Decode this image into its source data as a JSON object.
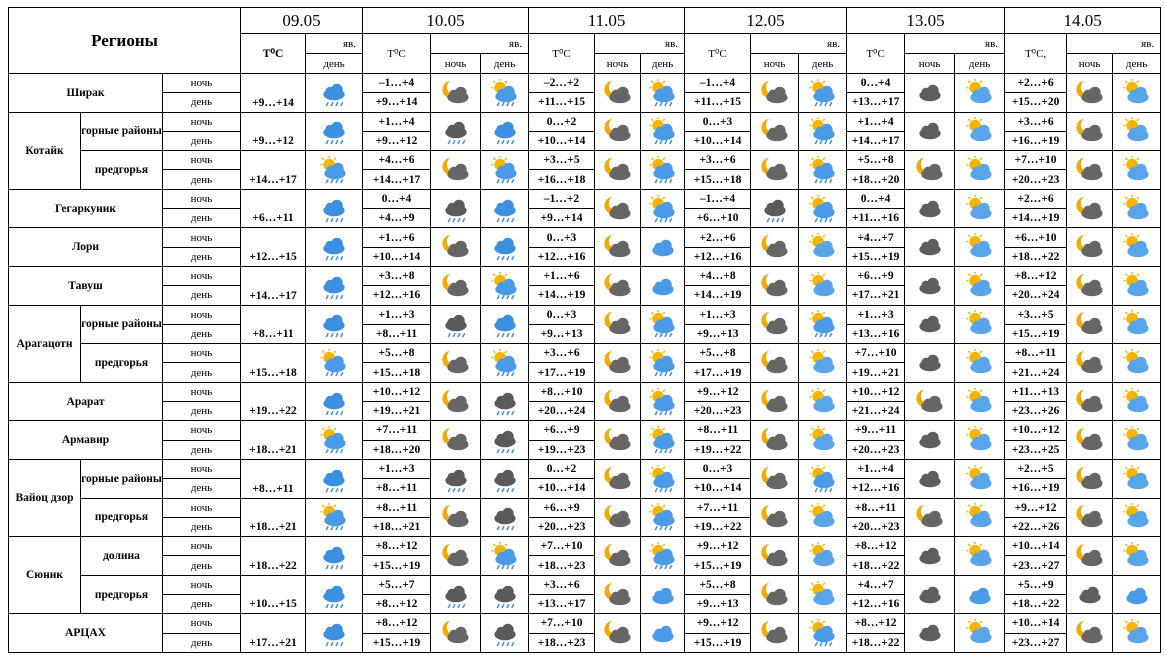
{
  "header": {
    "region": "Регионы",
    "dates": [
      "09.05",
      "10.05",
      "11.05",
      "12.05",
      "13.05",
      "14.05"
    ],
    "temp": "T⁰C",
    "temp_last": "T⁰C,",
    "icon": "яв.",
    "night": "ночь",
    "day": "день"
  },
  "regions": [
    {
      "name": "Ширак",
      "parts": [
        {
          "sub": null,
          "first": "+9…+14",
          "temps": [
            [
              "–1…+4",
              "+9…+14"
            ],
            [
              "–2…+2",
              "+11…+15"
            ],
            [
              "–1…+4",
              "+11…+15"
            ],
            [
              "0…+4",
              "+13…+17"
            ],
            [
              "+2…+6",
              "+15…+20"
            ]
          ]
        }
      ]
    },
    {
      "name": "Котайк",
      "parts": [
        {
          "sub": "горные районы",
          "first": "+9…+12",
          "temps": [
            [
              "+1…+4",
              "+9…+12"
            ],
            [
              "0…+2",
              "+10…+14"
            ],
            [
              "0…+3",
              "+10…+14"
            ],
            [
              "+1…+4",
              "+14…+17"
            ],
            [
              "+3…+6",
              "+16…+19"
            ]
          ]
        },
        {
          "sub": "предгорья",
          "first": "+14…+17",
          "temps": [
            [
              "+4…+6",
              "+14…+17"
            ],
            [
              "+3…+5",
              "+16…+18"
            ],
            [
              "+3…+6",
              "+15…+18"
            ],
            [
              "+5…+8",
              "+18…+20"
            ],
            [
              "+7…+10",
              "+20…+23"
            ]
          ]
        }
      ]
    },
    {
      "name": "Гегаркуник",
      "parts": [
        {
          "sub": null,
          "first": "+6…+11",
          "temps": [
            [
              "0…+4",
              "+4…+9"
            ],
            [
              "–1…+2",
              "+9…+14"
            ],
            [
              "–1…+4",
              "+6…+10"
            ],
            [
              "0…+4",
              "+11…+16"
            ],
            [
              "+2…+6",
              "+14…+19"
            ]
          ]
        }
      ]
    },
    {
      "name": "Лори",
      "parts": [
        {
          "sub": null,
          "first": "+12…+15",
          "temps": [
            [
              "+1…+6",
              "+10…+14"
            ],
            [
              "0…+3",
              "+12…+16"
            ],
            [
              "+2…+6",
              "+12…+16"
            ],
            [
              "+4…+7",
              "+15…+19"
            ],
            [
              "+6…+10",
              "+18…+22"
            ]
          ]
        }
      ]
    },
    {
      "name": "Тавуш",
      "parts": [
        {
          "sub": null,
          "first": "+14…+17",
          "temps": [
            [
              "+3…+8",
              "+12…+16"
            ],
            [
              "+1…+6",
              "+14…+19"
            ],
            [
              "+4…+8",
              "+14…+19"
            ],
            [
              "+6…+9",
              "+17…+21"
            ],
            [
              "+8…+12",
              "+20…+24"
            ]
          ]
        }
      ]
    },
    {
      "name": "Арагацотн",
      "parts": [
        {
          "sub": "горные районы",
          "first": "+8…+11",
          "temps": [
            [
              "+1…+3",
              "+8…+11"
            ],
            [
              "0…+3",
              "+9…+13"
            ],
            [
              "+1…+3",
              "+9…+13"
            ],
            [
              "+1…+3",
              "+13…+16"
            ],
            [
              "+3…+5",
              "+15…+19"
            ]
          ]
        },
        {
          "sub": "предгорья",
          "first": "+15…+18",
          "temps": [
            [
              "+5…+8",
              "+15…+18"
            ],
            [
              "+3…+6",
              "+17…+19"
            ],
            [
              "+5…+8",
              "+17…+19"
            ],
            [
              "+7…+10",
              "+19…+21"
            ],
            [
              "+8…+11",
              "+21…+24"
            ]
          ]
        }
      ]
    },
    {
      "name": "Арарат",
      "parts": [
        {
          "sub": null,
          "first": "+19…+22",
          "temps": [
            [
              "+10…+12",
              "+19…+21"
            ],
            [
              "+8…+10",
              "+20…+24"
            ],
            [
              "+9…+12",
              "+20…+23"
            ],
            [
              "+10…+12",
              "+21…+24"
            ],
            [
              "+11…+13",
              "+23…+26"
            ]
          ]
        }
      ]
    },
    {
      "name": "Армавир",
      "parts": [
        {
          "sub": null,
          "first": "+18…+21",
          "temps": [
            [
              "+7…+11",
              "+18…+20"
            ],
            [
              "+6…+9",
              "+19…+23"
            ],
            [
              "+8…+11",
              "+19…+22"
            ],
            [
              "+9…+11",
              "+20…+23"
            ],
            [
              "+10…+12",
              "+23…+25"
            ]
          ]
        }
      ]
    },
    {
      "name": "Вайоц дзор",
      "parts": [
        {
          "sub": "горные районы",
          "first": "+8…+11",
          "temps": [
            [
              "+1…+3",
              "+8…+11"
            ],
            [
              "0…+2",
              "+10…+14"
            ],
            [
              "0…+3",
              "+10…+14"
            ],
            [
              "+1…+4",
              "+12…+16"
            ],
            [
              "+2…+5",
              "+16…+19"
            ]
          ]
        },
        {
          "sub": "предгорья",
          "first": "+18…+21",
          "temps": [
            [
              "+8…+11",
              "+18…+21"
            ],
            [
              "+6…+9",
              "+20…+23"
            ],
            [
              "+7…+11",
              "+19…+22"
            ],
            [
              "+8…+11",
              "+20…+23"
            ],
            [
              "+9…+12",
              "+22…+26"
            ]
          ]
        }
      ]
    },
    {
      "name": "Сюник",
      "parts": [
        {
          "sub": "долина",
          "first": "+18…+22",
          "temps": [
            [
              "+8…+12",
              "+15…+19"
            ],
            [
              "+7…+10",
              "+18…+23"
            ],
            [
              "+9…+12",
              "+15…+19"
            ],
            [
              "+8…+12",
              "+18…+22"
            ],
            [
              "+10…+14",
              "+23…+27"
            ]
          ]
        },
        {
          "sub": "предгорья",
          "first": "+10…+15",
          "temps": [
            [
              "+5…+7",
              "+8…+12"
            ],
            [
              "+3…+6",
              "+13…+17"
            ],
            [
              "+5…+8",
              "+9…+13"
            ],
            [
              "+4…+7",
              "+12…+16"
            ],
            [
              "+5…+9",
              "+18…+22"
            ]
          ]
        }
      ]
    },
    {
      "name": "АРЦАХ",
      "parts": [
        {
          "sub": null,
          "first": "+17…+21",
          "temps": [
            [
              "+8…+12",
              "+15…+19"
            ],
            [
              "+7…+10",
              "+18…+23"
            ],
            [
              "+9…+12",
              "+15…+19"
            ],
            [
              "+8…+12",
              "+18…+22"
            ],
            [
              "+10…+14",
              "+23…+27"
            ]
          ]
        }
      ]
    }
  ]
}
